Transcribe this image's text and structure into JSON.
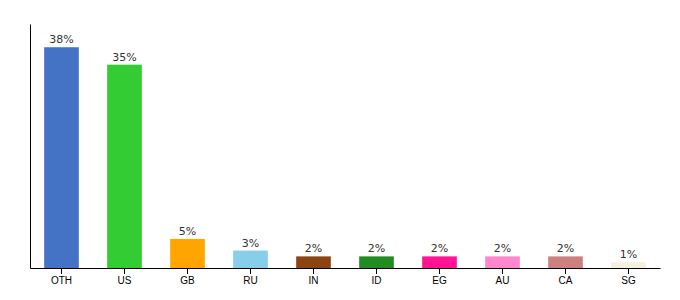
{
  "chart_data": {
    "type": "bar",
    "categories": [
      "OTH",
      "US",
      "GB",
      "RU",
      "IN",
      "ID",
      "EG",
      "AU",
      "CA",
      "SG"
    ],
    "values": [
      38,
      35,
      5,
      3,
      2,
      2,
      2,
      2,
      2,
      1
    ],
    "value_labels": [
      "38%",
      "35%",
      "5%",
      "3%",
      "2%",
      "2%",
      "2%",
      "2%",
      "2%",
      "1%"
    ],
    "colors": [
      "#4472C4",
      "#33CC33",
      "#FFA500",
      "#87CEEB",
      "#8B4513",
      "#228B22",
      "#FF1493",
      "#FF88CC",
      "#CD8080",
      "#F5F0DC"
    ],
    "ylim": [
      0,
      42
    ],
    "grid": false,
    "data_labels": true,
    "tick_labels": "x"
  }
}
